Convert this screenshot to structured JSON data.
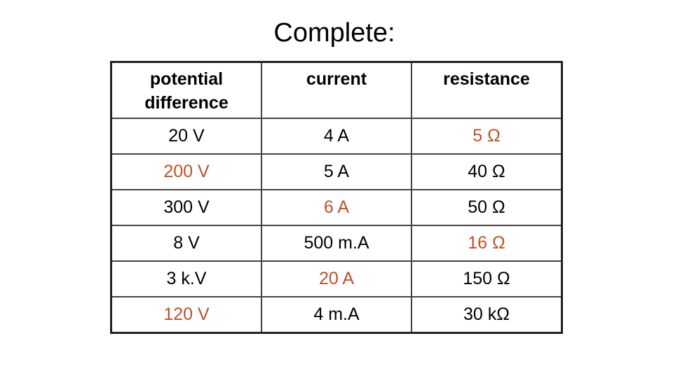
{
  "title": "Complete:",
  "table": {
    "header": [
      "potential difference",
      "current",
      "resistance"
    ],
    "rows": [
      [
        "20 V",
        "4 A",
        "5 Ω"
      ],
      [
        "200 V",
        "5 A",
        "40 Ω"
      ],
      [
        "300 V",
        "6 A",
        "50 Ω"
      ],
      [
        "8 V",
        "500 m.A",
        "16 Ω"
      ],
      [
        "3 k.V",
        "20 A",
        "150 Ω"
      ],
      [
        "120 V",
        "4 m.A",
        "30 kΩ"
      ]
    ]
  }
}
